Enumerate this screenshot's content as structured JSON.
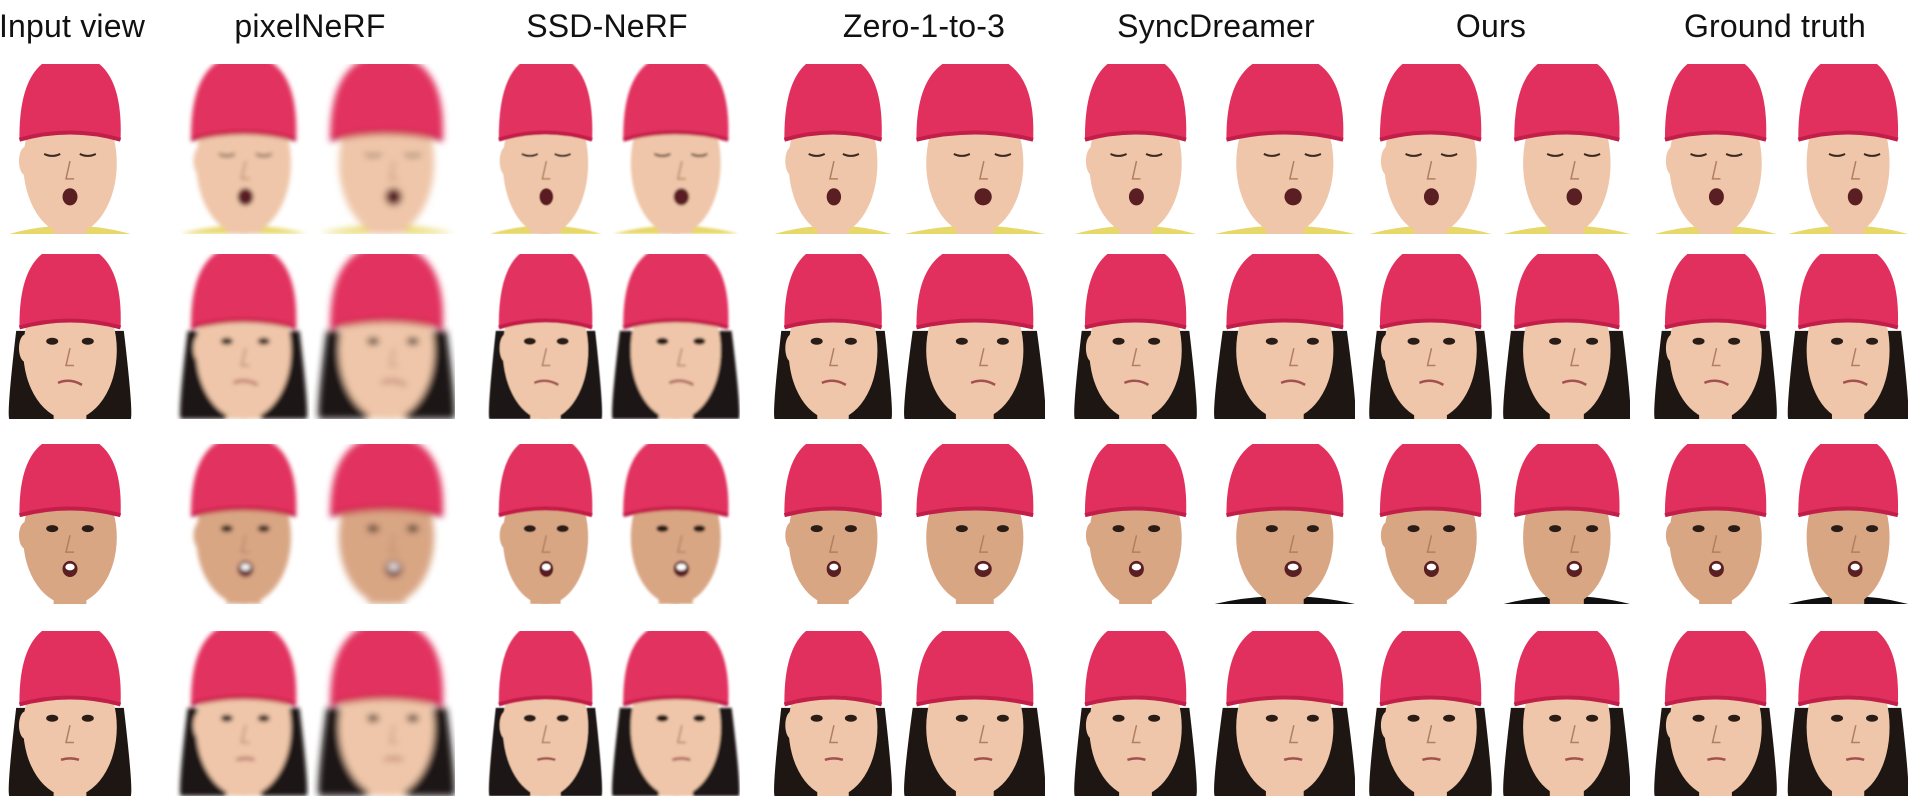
{
  "figure": {
    "column_headers": [
      "Input view",
      "pixelNeRF",
      "SSD-NeRF",
      "Zero-1-to-3",
      "SyncDreamer",
      "Ours",
      "Ground truth"
    ]
  },
  "subjects": [
    {
      "expression": "eyes-closed-mouth-open",
      "tone": "light",
      "hair": "short"
    },
    {
      "expression": "grimace",
      "tone": "light",
      "hair": "long"
    },
    {
      "expression": "mouth-open-shout",
      "tone": "medium",
      "hair": "short"
    },
    {
      "expression": "puffed-cheeks-look-up",
      "tone": "light",
      "hair": "long"
    }
  ],
  "colors": {
    "cap": "#e2305e",
    "cap_shadow": "#c21e4a",
    "skin_light": "#efc6a9",
    "skin_medium": "#d9a684",
    "hair": "#1d1612",
    "shirt_yellow": "#e8d86a",
    "shirt_black": "#101010"
  }
}
